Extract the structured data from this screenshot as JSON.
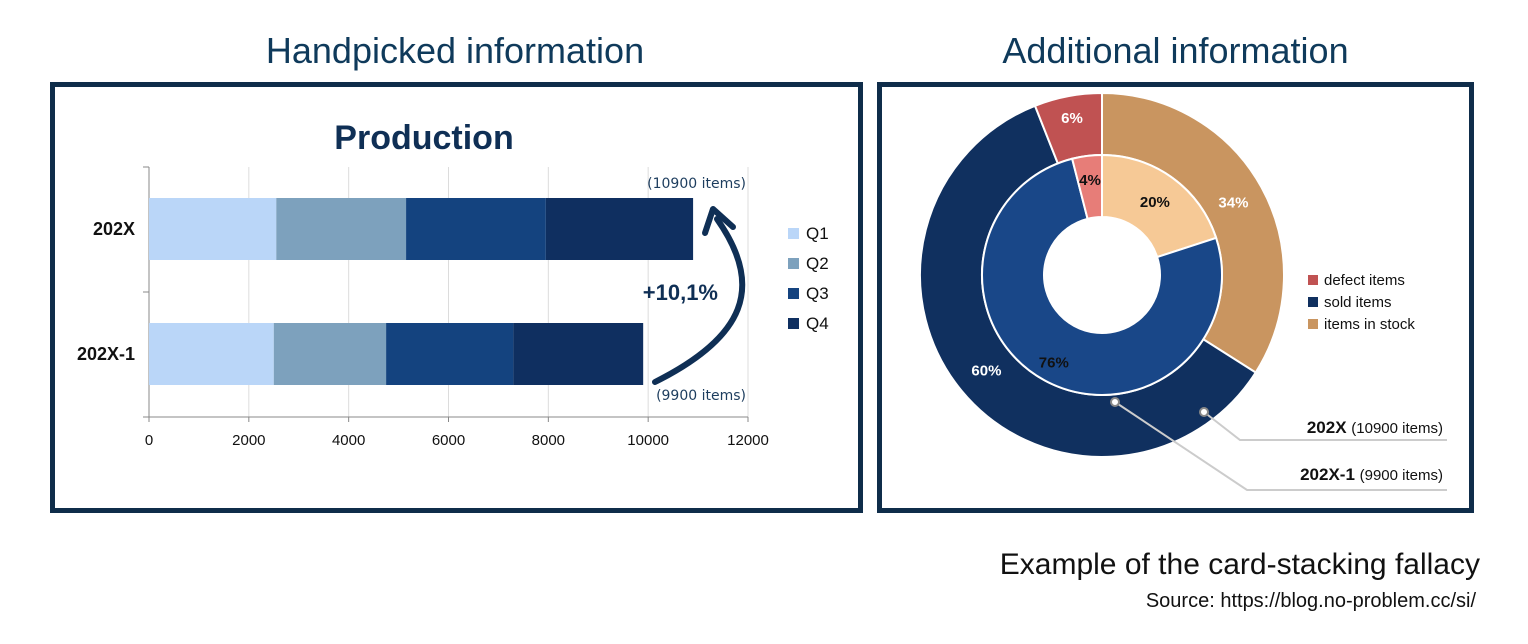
{
  "headings": {
    "left": "Handpicked information",
    "right": "Additional information"
  },
  "footer": {
    "caption": "Example of the card-stacking fallacy",
    "source": "Source: https://blog.no-problem.cc/si/"
  },
  "chart_data": [
    {
      "type": "bar",
      "orientation": "horizontal",
      "stacked": true,
      "title": "Production",
      "categories": [
        "202X",
        "202X-1"
      ],
      "series": [
        {
          "name": "Q1",
          "values": [
            2550,
            2500
          ],
          "color": "#bad6f8"
        },
        {
          "name": "Q2",
          "values": [
            2600,
            2250
          ],
          "color": "#7da1bd"
        },
        {
          "name": "Q3",
          "values": [
            2800,
            2550
          ],
          "color": "#14437f"
        },
        {
          "name": "Q4",
          "values": [
            2950,
            2600
          ],
          "color": "#0f2f60"
        }
      ],
      "totals_labels": [
        "(10900 items)",
        "(9900 items)"
      ],
      "annotation": "+10,1%",
      "xlim": [
        0,
        12000
      ],
      "xticks": [
        "0",
        "2000",
        "4000",
        "6000",
        "8000",
        "10000",
        "12000"
      ],
      "grid": true,
      "legend": "right"
    },
    {
      "type": "pie",
      "style": "nested-donut",
      "legend": "right",
      "series_labels": [
        {
          "name": "202X",
          "detail": "(10900 items)",
          "ring": "outer"
        },
        {
          "name": "202X-1",
          "detail": "(9900 items)",
          "ring": "inner"
        }
      ],
      "categories": [
        "defect items",
        "sold items",
        "items in stock"
      ],
      "colors": {
        "defect": "#c05252",
        "sold": "#10305f",
        "stock": "#c99560",
        "inner_defect": "#e77d78",
        "inner_sold": "#194788",
        "inner_stock": "#f6c996"
      },
      "outer": {
        "defect": 6,
        "sold": 60,
        "stock": 34
      },
      "inner": {
        "defect": 4,
        "sold": 76,
        "stock": 20
      },
      "labels_outer": {
        "defect": "6%",
        "sold": "60%",
        "stock": "34%"
      },
      "labels_inner": {
        "defect": "4%",
        "sold": "76%",
        "stock": "20%"
      }
    }
  ]
}
